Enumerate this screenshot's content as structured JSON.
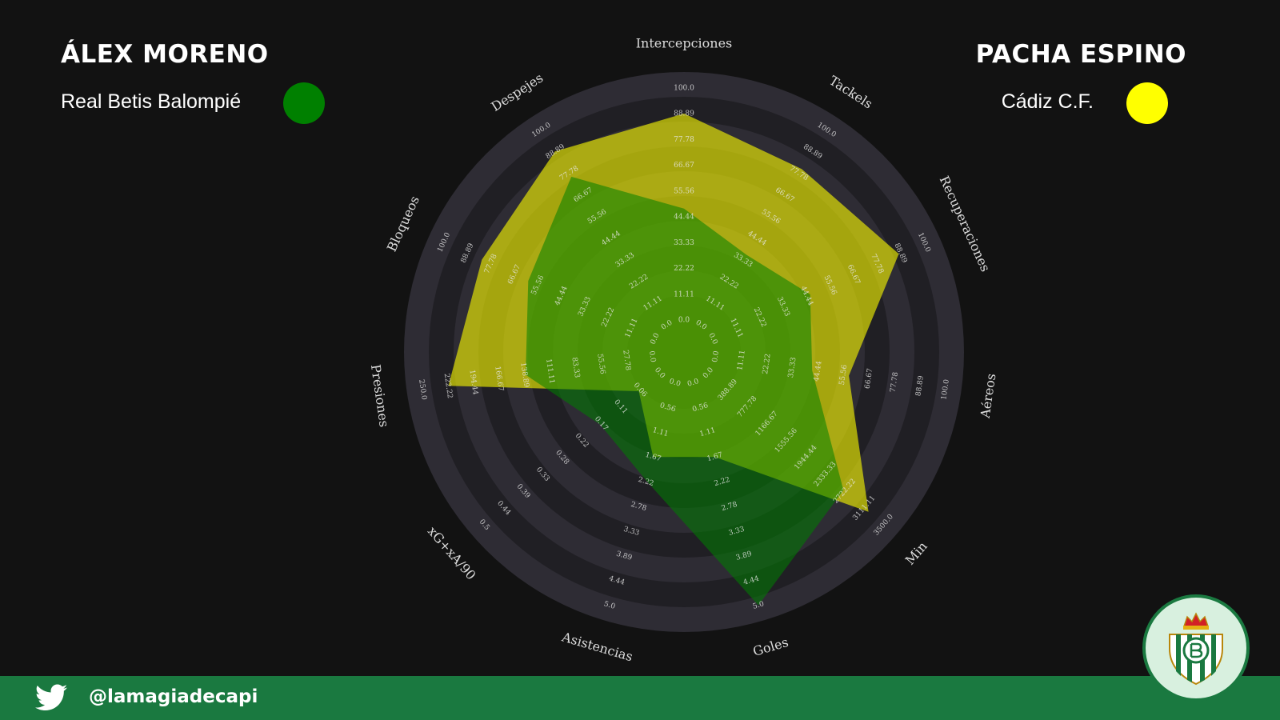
{
  "players": [
    {
      "name": "ÁLEX MORENO",
      "team": "Real Betis Balompié",
      "color": "#008000"
    },
    {
      "name": "PACHA ESPINO",
      "team": "Cádiz C.F.",
      "color": "#ffff00"
    }
  ],
  "footer": {
    "handle": "@lamagiadecapi",
    "icon": "twitter-icon"
  },
  "badge": {
    "icon": "real-betis-crest-icon"
  },
  "colors": {
    "background": "#121212",
    "footer": "#1a7940",
    "ring_dark": "#2e2c34",
    "ring_light": "#3d3b45"
  },
  "chart_data": {
    "type": "radar",
    "axes": [
      {
        "label": "Intercepciones",
        "ticks": [
          "0.0",
          "11.11",
          "22.22",
          "33.33",
          "44.44",
          "55.56",
          "66.67",
          "77.78",
          "88.89",
          "100.0"
        ],
        "max_label": "100.0"
      },
      {
        "label": "Tackels",
        "ticks": [
          "0.0",
          "11.11",
          "22.22",
          "33.33",
          "44.44",
          "55.56",
          "66.67",
          "77.78",
          "88.89",
          "100.0"
        ],
        "max_label": "100.0"
      },
      {
        "label": "Recuperaciones",
        "ticks": [
          "0.0",
          "11.11",
          "22.22",
          "33.33",
          "44.44",
          "55.56",
          "66.67",
          "77.78",
          "88.89",
          "100.0"
        ],
        "max_label": "100.0"
      },
      {
        "label": "Aéreos",
        "ticks": [
          "0.0",
          "11.11",
          "22.22",
          "33.33",
          "44.44",
          "55.56",
          "66.67",
          "77.78",
          "88.89",
          "100.0"
        ],
        "max_label": "100.0"
      },
      {
        "label": "Min",
        "ticks": [
          "0.0",
          "388.89",
          "777.78",
          "1166.67",
          "1555.56",
          "1944.44",
          "2333.33",
          "2722.22",
          "3111.11",
          "3500.0"
        ],
        "max_label": "3500.0"
      },
      {
        "label": "Goles",
        "ticks": [
          "0.0",
          "0.56",
          "1.11",
          "1.67",
          "2.22",
          "2.78",
          "3.33",
          "3.89",
          "4.44",
          "5.0"
        ],
        "max_label": "5.0"
      },
      {
        "label": "Asistencias",
        "ticks": [
          "0.0",
          "0.56",
          "1.11",
          "1.67",
          "2.22",
          "2.78",
          "3.33",
          "3.89",
          "4.44",
          "5.0"
        ],
        "max_label": "5.0"
      },
      {
        "label": "xG+xA/90",
        "ticks": [
          "0.0",
          "0.06",
          "0.11",
          "0.17",
          "0.22",
          "0.28",
          "0.33",
          "0.39",
          "0.44",
          "0.5"
        ],
        "max_label": "0.5"
      },
      {
        "label": "Presiones",
        "ticks": [
          "0.0",
          "27.78",
          "55.56",
          "83.33",
          "111.11",
          "138.89",
          "166.67",
          "194.44",
          "222.22",
          "250.0"
        ],
        "max_label": "250.0"
      },
      {
        "label": "Bloqueos",
        "ticks": [
          "0.0",
          "11.11",
          "22.22",
          "33.33",
          "44.44",
          "55.56",
          "66.67",
          "77.78",
          "88.89",
          "100.0"
        ],
        "max_label": "100.0"
      },
      {
        "label": "Despejes",
        "ticks": [
          "0.0",
          "11.11",
          "22.22",
          "33.33",
          "44.44",
          "55.56",
          "66.67",
          "77.78",
          "88.89",
          "100.0"
        ],
        "max_label": "100.0"
      }
    ],
    "series": [
      {
        "name": "ÁLEX MORENO",
        "color": "#008000",
        "values": [
          48,
          36,
          46,
          42,
          2700,
          5.0,
          2.2,
          0.17,
          138,
          60,
          76
        ]
      },
      {
        "name": "PACHA ESPINO",
        "color": "#ffff00",
        "values": [
          89,
          80,
          88,
          58,
          3200,
          1.67,
          1.67,
          0.06,
          222,
          82,
          89
        ]
      }
    ]
  }
}
